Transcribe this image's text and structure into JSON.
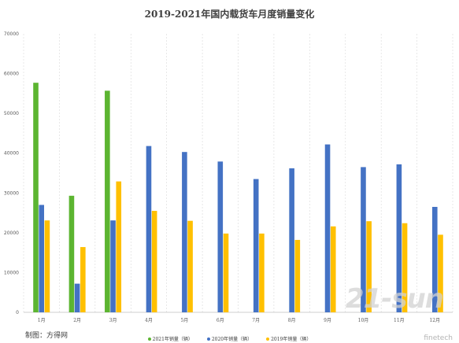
{
  "chart_data": {
    "type": "bar",
    "title": "2019-2021年国内载货车月度销量变化",
    "categories": [
      "1月",
      "2月",
      "3月",
      "4月",
      "5月",
      "6月",
      "7月",
      "8月",
      "9月",
      "10月",
      "11月",
      "12月"
    ],
    "ylim": [
      0,
      70000
    ],
    "yticks": [
      0,
      10000,
      20000,
      30000,
      40000,
      50000,
      60000,
      70000
    ],
    "grid": "vertical dashed",
    "legend_position": "bottom",
    "series": [
      {
        "name": "2021年销量（辆）",
        "color": "#5cb531",
        "values": [
          57700,
          29300,
          55700,
          null,
          null,
          null,
          null,
          null,
          null,
          null,
          null,
          null
        ]
      },
      {
        "name": "2020年销量（辆）",
        "color": "#4472c4",
        "values": [
          27000,
          7200,
          23100,
          41800,
          40300,
          37900,
          33500,
          36200,
          42200,
          36500,
          37200,
          26500
        ]
      },
      {
        "name": "2019年销量（辆）",
        "color": "#ffc000",
        "values": [
          23100,
          16400,
          32900,
          25500,
          23000,
          19800,
          19800,
          18200,
          21600,
          22900,
          22400,
          19500
        ]
      }
    ]
  },
  "source_note": "制图：方得网",
  "watermark": "21-sun",
  "watermark_sub": "finetech"
}
